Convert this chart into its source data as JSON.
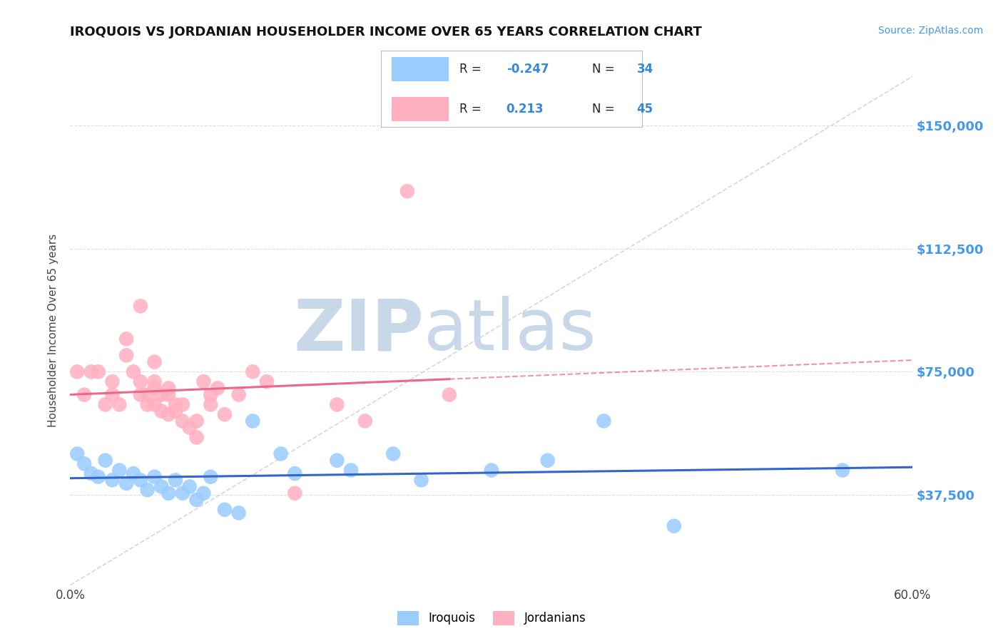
{
  "title": "IROQUOIS VS JORDANIAN HOUSEHOLDER INCOME OVER 65 YEARS CORRELATION CHART",
  "source": "Source: ZipAtlas.com",
  "ylabel": "Householder Income Over 65 years",
  "ytick_labels": [
    "$37,500",
    "$75,000",
    "$112,500",
    "$150,000"
  ],
  "ytick_values": [
    37500,
    75000,
    112500,
    150000
  ],
  "xmin": 0.0,
  "xmax": 0.6,
  "ymin": 10000,
  "ymax": 165000,
  "legend_iroquois_R": "-0.247",
  "legend_iroquois_N": "34",
  "legend_jordanian_R": "0.213",
  "legend_jordanian_N": "45",
  "iroquois_color": "#99CCFF",
  "jordanian_color": "#FFB0C0",
  "iroquois_line_color": "#3366CC",
  "jordanian_line_color": "#EE6688",
  "iroquois_scatter_x": [
    0.005,
    0.01,
    0.015,
    0.02,
    0.025,
    0.03,
    0.035,
    0.04,
    0.045,
    0.05,
    0.055,
    0.06,
    0.065,
    0.07,
    0.075,
    0.08,
    0.085,
    0.09,
    0.095,
    0.1,
    0.11,
    0.12,
    0.13,
    0.15,
    0.16,
    0.19,
    0.2,
    0.23,
    0.25,
    0.3,
    0.34,
    0.38,
    0.43,
    0.55
  ],
  "iroquois_scatter_y": [
    50000,
    47000,
    44000,
    43000,
    48000,
    42000,
    45000,
    41000,
    44000,
    42000,
    39000,
    43000,
    40000,
    38000,
    42000,
    38000,
    40000,
    36000,
    38000,
    43000,
    33000,
    32000,
    60000,
    50000,
    44000,
    48000,
    45000,
    50000,
    42000,
    45000,
    48000,
    60000,
    28000,
    45000
  ],
  "jordanian_scatter_x": [
    0.005,
    0.01,
    0.015,
    0.02,
    0.025,
    0.03,
    0.03,
    0.035,
    0.04,
    0.04,
    0.045,
    0.05,
    0.05,
    0.05,
    0.055,
    0.055,
    0.06,
    0.06,
    0.06,
    0.06,
    0.065,
    0.065,
    0.07,
    0.07,
    0.07,
    0.075,
    0.075,
    0.08,
    0.08,
    0.085,
    0.09,
    0.09,
    0.095,
    0.1,
    0.1,
    0.105,
    0.11,
    0.12,
    0.13,
    0.14,
    0.16,
    0.19,
    0.21,
    0.24,
    0.27
  ],
  "jordanian_scatter_y": [
    75000,
    68000,
    75000,
    75000,
    65000,
    72000,
    68000,
    65000,
    85000,
    80000,
    75000,
    95000,
    72000,
    68000,
    68000,
    65000,
    78000,
    72000,
    70000,
    65000,
    68000,
    63000,
    70000,
    68000,
    62000,
    65000,
    63000,
    65000,
    60000,
    58000,
    60000,
    55000,
    72000,
    68000,
    65000,
    70000,
    62000,
    68000,
    75000,
    72000,
    38000,
    65000,
    60000,
    130000,
    68000
  ],
  "background_color": "#FFFFFF",
  "grid_color": "#DDDDDD",
  "watermark_zip": "ZIP",
  "watermark_atlas": "atlas",
  "watermark_color": "#C8D8E8"
}
